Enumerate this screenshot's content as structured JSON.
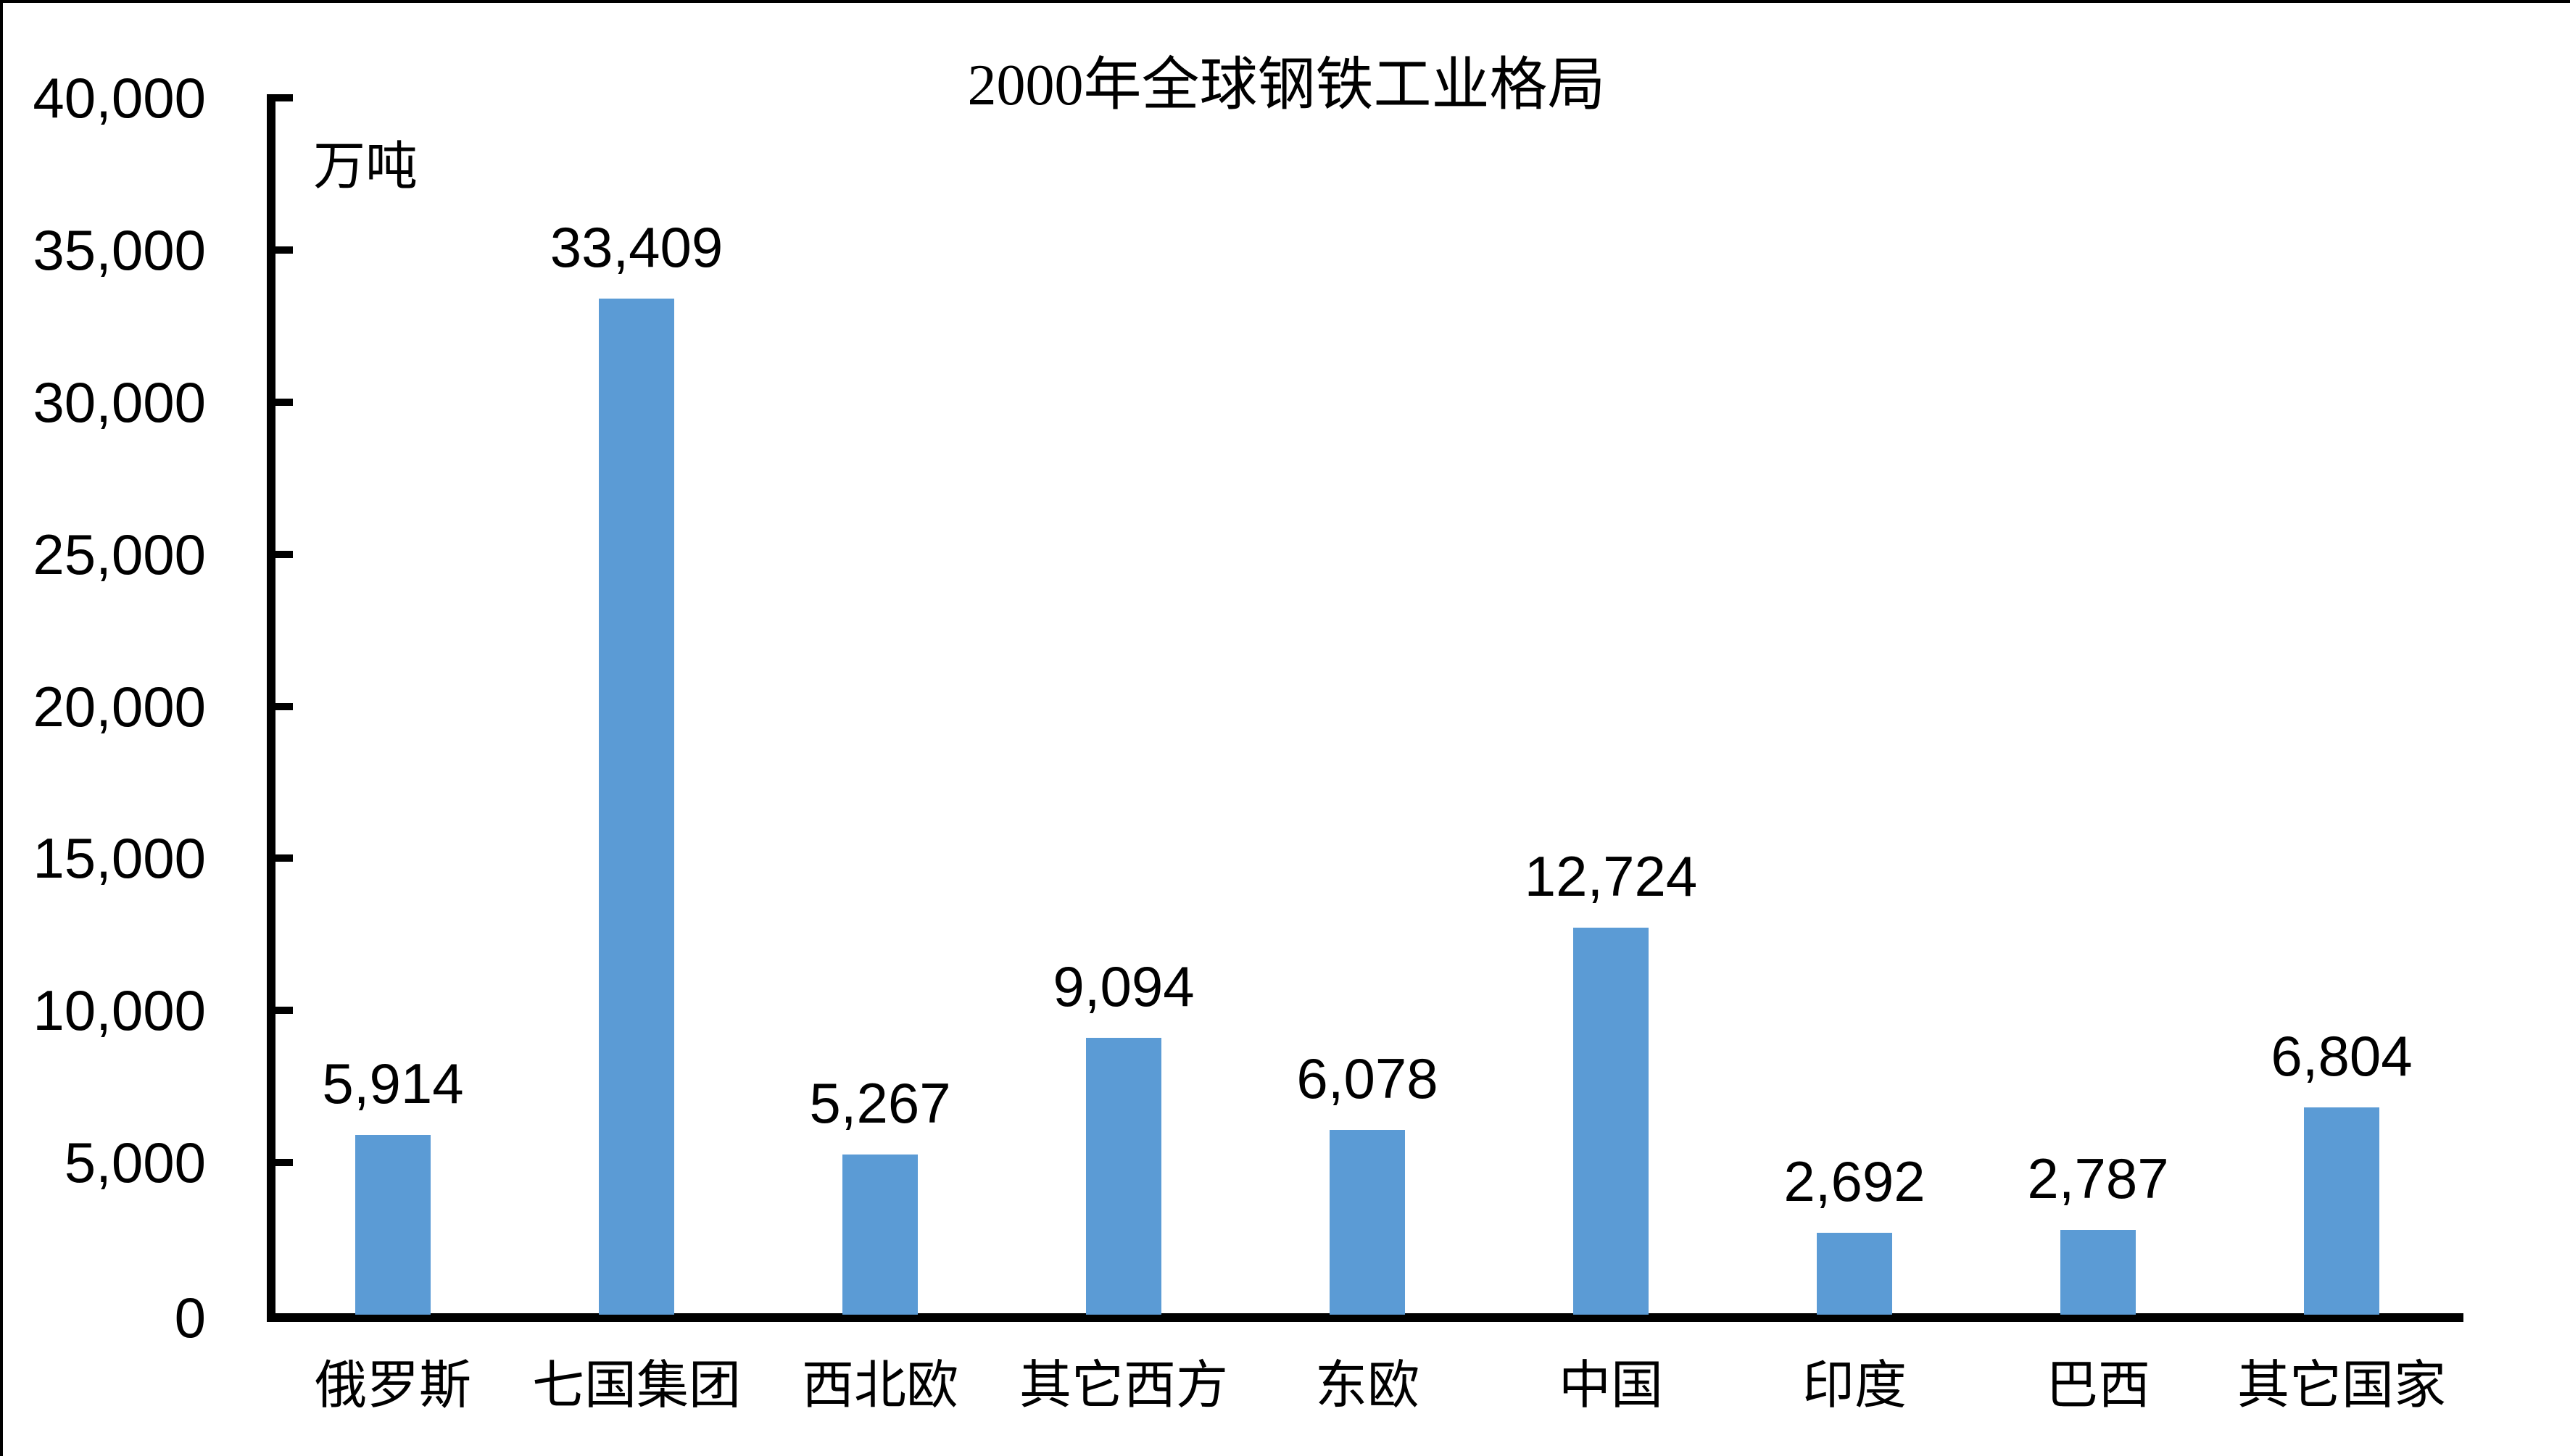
{
  "title": "2000年全球钢铁工业格局",
  "unit_label": "万吨",
  "chart_data": {
    "type": "bar",
    "title": "2000年全球钢铁工业格局",
    "xlabel": "",
    "ylabel": "万吨",
    "categories": [
      "俄罗斯",
      "七国集团",
      "西北欧",
      "其它西方",
      "东欧",
      "中国",
      "印度",
      "巴西",
      "其它国家"
    ],
    "values": [
      5914,
      33409,
      5267,
      9094,
      6078,
      12724,
      2692,
      2787,
      6804
    ],
    "data_labels": [
      "5,914",
      "33,409",
      "5,267",
      "9,094",
      "6,078",
      "12,724",
      "2,692",
      "2,787",
      "6,804"
    ],
    "ylim": [
      0,
      40000
    ],
    "ytick_interval": 5000,
    "ytick_labels": [
      "0",
      "5,000",
      "10,000",
      "15,000",
      "20,000",
      "25,000",
      "30,000",
      "35,000",
      "40,000"
    ],
    "bar_color": "#5B9BD5",
    "axis_color": "#000000",
    "text_color": "#000000",
    "background_color": "#ffffff",
    "grid": false,
    "legend": "none"
  }
}
